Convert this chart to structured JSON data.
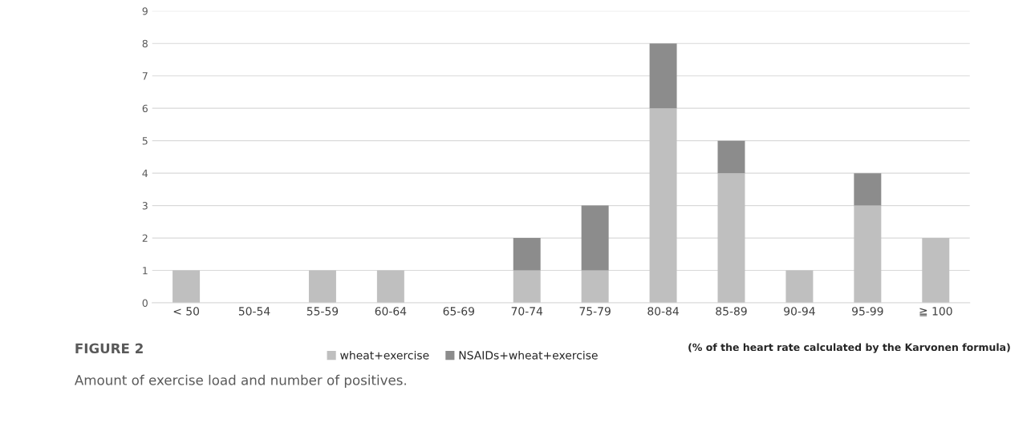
{
  "chart_data": {
    "type": "bar",
    "title": "FIGURE 2",
    "subtitle": "Amount of exercise load and number of positives.",
    "categories": [
      "< 50",
      "50-54",
      "55-59",
      "60-64",
      "65-69",
      "70-74",
      "75-79",
      "80-84",
      "85-89",
      "90-94",
      "95-99",
      "≧ 100"
    ],
    "series": [
      {
        "name": "wheat+exercise",
        "color": "#bfbfbf",
        "values": [
          1,
          null,
          1,
          1,
          null,
          1,
          1,
          6,
          4,
          1,
          3,
          2
        ]
      },
      {
        "name": "NSAIDs+wheat+exercise",
        "color": "#8c8c8c",
        "values": [
          null,
          null,
          null,
          null,
          null,
          1,
          2,
          2,
          1,
          null,
          1,
          null
        ]
      }
    ],
    "stacked": true,
    "ylim": [
      0,
      9
    ],
    "yticks": [
      0,
      1,
      2,
      3,
      4,
      5,
      6,
      7,
      8,
      9
    ],
    "grid": "y",
    "legend": "bottom",
    "annotations": [
      "(% of the heart rate calculated by the Karvonen formula)"
    ]
  }
}
